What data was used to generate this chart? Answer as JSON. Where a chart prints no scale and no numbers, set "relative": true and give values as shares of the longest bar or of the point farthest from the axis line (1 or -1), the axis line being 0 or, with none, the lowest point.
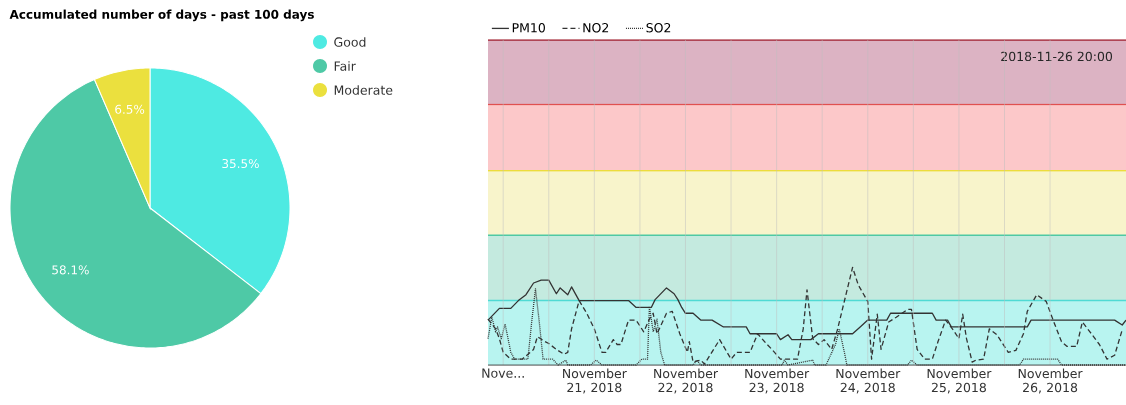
{
  "chart_data": [
    {
      "type": "pie",
      "title": "Accumulated number of days - past 100 days",
      "categories": [
        "Good",
        "Fair",
        "Moderate"
      ],
      "values": [
        35.5,
        58.1,
        6.5
      ],
      "colors": [
        "#4eeae2",
        "#4ec9a6",
        "#ebe03e"
      ],
      "value_labels": [
        "35.5%",
        "58.1%",
        "6.5%"
      ],
      "legend": "top right"
    },
    {
      "type": "line",
      "relative": true,
      "legend": "top left",
      "grid": "x",
      "annotations": [
        "2018-11-26 20:00"
      ],
      "xlim": [
        "2018-11-19T20:00",
        "2018-11-26T20:00"
      ],
      "xticks": [
        {
          "value": "2018-11-20",
          "label": "Nove..."
        },
        {
          "value": "2018-11-21",
          "label": "November 21, 2018"
        },
        {
          "value": "2018-11-22",
          "label": "November 22, 2018"
        },
        {
          "value": "2018-11-23",
          "label": "November 23, 2018"
        },
        {
          "value": "2018-11-24",
          "label": "November 24, 2018"
        },
        {
          "value": "2018-11-25",
          "label": "November 25, 2018"
        },
        {
          "value": "2018-11-26",
          "label": "November 26, 2018"
        }
      ],
      "bands": [
        {
          "axis": "y",
          "from": 0,
          "to": 0.66,
          "color": "#b8f4f0"
        },
        {
          "axis": "y",
          "from": 0.66,
          "to": 1.33,
          "color": "#c4eadf"
        },
        {
          "axis": "y",
          "from": 1.33,
          "to": 1.99,
          "color": "#f8f4cb"
        },
        {
          "axis": "y",
          "from": 1.99,
          "to": 2.67,
          "color": "#fcc8c9"
        },
        {
          "axis": "y",
          "from": 2.67,
          "to": 3.33,
          "color": "#dcb3c3"
        }
      ],
      "ref_lines": [
        {
          "axis": "y",
          "value": 0.66,
          "color": "#4fdad4"
        },
        {
          "axis": "y",
          "value": 1.33,
          "color": "#4fc9a4"
        },
        {
          "axis": "y",
          "value": 1.99,
          "color": "#ecdc3c"
        },
        {
          "axis": "y",
          "value": 2.67,
          "color": "#e05050"
        },
        {
          "axis": "y",
          "value": 3.33,
          "color": "#a02030"
        }
      ],
      "series": [
        {
          "name": "PM10",
          "color": "#333333",
          "line_style": "solid",
          "x": [
            "2018-11-19T20:00",
            "2018-11-19T23:00",
            "2018-11-20T02:00",
            "2018-11-20T04:00",
            "2018-11-20T06:00",
            "2018-11-20T08:00",
            "2018-11-20T10:00",
            "2018-11-20T12:00",
            "2018-11-20T14:00",
            "2018-11-20T15:00",
            "2018-11-20T17:00",
            "2018-11-20T18:00",
            "2018-11-20T20:00",
            "2018-11-21T09:00",
            "2018-11-21T11:00",
            "2018-11-21T15:00",
            "2018-11-21T16:00",
            "2018-11-21T19:00",
            "2018-11-21T21:00",
            "2018-11-21T22:00",
            "2018-11-21T23:00",
            "2018-11-22T00:00",
            "2018-11-22T02:00",
            "2018-11-22T04:00",
            "2018-11-22T07:00",
            "2018-11-22T10:00",
            "2018-11-22T16:00",
            "2018-11-22T17:00",
            "2018-11-23T00:00",
            "2018-11-23T01:00",
            "2018-11-23T03:00",
            "2018-11-23T04:00",
            "2018-11-23T09:00",
            "2018-11-23T11:00",
            "2018-11-23T20:00",
            "2018-11-23T22:00",
            "2018-11-24T00:00",
            "2018-11-24T05:00",
            "2018-11-24T06:00",
            "2018-11-24T17:00",
            "2018-11-24T18:00",
            "2018-11-24T21:00",
            "2018-11-24T22:00",
            "2018-11-25T18:00",
            "2018-11-25T19:00",
            "2018-11-26T17:00",
            "2018-11-26T19:00",
            "2018-11-26T20:00"
          ],
          "values": [
            0.46,
            0.58,
            0.58,
            0.66,
            0.72,
            0.84,
            0.87,
            0.87,
            0.73,
            0.79,
            0.72,
            0.8,
            0.66,
            0.66,
            0.59,
            0.59,
            0.67,
            0.79,
            0.73,
            0.67,
            0.59,
            0.53,
            0.53,
            0.46,
            0.46,
            0.39,
            0.39,
            0.32,
            0.32,
            0.26,
            0.31,
            0.26,
            0.26,
            0.32,
            0.32,
            0.39,
            0.46,
            0.46,
            0.53,
            0.53,
            0.46,
            0.46,
            0.39,
            0.39,
            0.46,
            0.46,
            0.41,
            0.46
          ]
        },
        {
          "name": "NO2",
          "color": "#333333",
          "line_style": "dashed",
          "x": [
            "2018-11-19T20:00",
            "2018-11-19T22:00",
            "2018-11-19T23:00",
            "2018-11-20T00:00",
            "2018-11-20T02:00",
            "2018-11-20T05:00",
            "2018-11-20T08:00",
            "2018-11-20T09:00",
            "2018-11-20T11:00",
            "2018-11-20T12:00",
            "2018-11-20T14:00",
            "2018-11-20T16:00",
            "2018-11-20T17:00",
            "2018-11-20T18:00",
            "2018-11-20T20:00",
            "2018-11-20T22:00",
            "2018-11-21T00:00",
            "2018-11-21T02:00",
            "2018-11-21T03:00",
            "2018-11-21T05:00",
            "2018-11-21T06:00",
            "2018-11-21T07:00",
            "2018-11-21T09:00",
            "2018-11-21T11:00",
            "2018-11-21T13:00",
            "2018-11-21T14:30",
            "2018-11-21T15:30",
            "2018-11-21T16:30",
            "2018-11-21T19:00",
            "2018-11-21T20:30",
            "2018-11-21T22:30",
            "2018-11-22T00:30",
            "2018-11-22T01:00",
            "2018-11-22T02:00",
            "2018-11-22T04:00",
            "2018-11-22T05:00",
            "2018-11-22T09:00",
            "2018-11-22T12:00",
            "2018-11-22T13:30",
            "2018-11-22T17:00",
            "2018-11-22T19:00",
            "2018-11-22T21:30",
            "2018-11-22T23:00",
            "2018-11-23T01:00",
            "2018-11-23T05:30",
            "2018-11-23T07:00",
            "2018-11-23T08:00",
            "2018-11-23T09:30",
            "2018-11-23T11:00",
            "2018-11-23T12:30",
            "2018-11-23T14:30",
            "2018-11-23T16:00",
            "2018-11-23T20:00",
            "2018-11-23T21:30",
            "2018-11-24T00:00",
            "2018-11-24T01:00",
            "2018-11-24T02:30",
            "2018-11-24T03:30",
            "2018-11-24T05:30",
            "2018-11-24T07:30",
            "2018-11-24T10:30",
            "2018-11-24T11:30",
            "2018-11-24T13:00",
            "2018-11-24T15:00",
            "2018-11-24T17:00",
            "2018-11-24T18:30",
            "2018-11-24T20:30",
            "2018-11-24T22:30",
            "2018-11-25T00:00",
            "2018-11-25T01:00",
            "2018-11-25T02:00",
            "2018-11-25T03:30",
            "2018-11-25T04:30",
            "2018-11-25T06:30",
            "2018-11-25T08:00",
            "2018-11-25T10:00",
            "2018-11-25T13:00",
            "2018-11-25T15:00",
            "2018-11-25T17:00",
            "2018-11-25T18:00",
            "2018-11-25T20:30",
            "2018-11-25T23:00",
            "2018-11-26T01:00",
            "2018-11-26T03:00",
            "2018-11-26T04:30",
            "2018-11-26T07:00",
            "2018-11-26T08:30",
            "2018-11-26T10:30",
            "2018-11-26T13:00",
            "2018-11-26T15:00",
            "2018-11-26T17:00",
            "2018-11-26T19:00"
          ],
          "values": [
            0.47,
            0.37,
            0.27,
            0.13,
            0.06,
            0.06,
            0.16,
            0.29,
            0.24,
            0.22,
            0.16,
            0.11,
            0.13,
            0.37,
            0.66,
            0.53,
            0.37,
            0.13,
            0.13,
            0.26,
            0.21,
            0.21,
            0.46,
            0.46,
            0.34,
            0.47,
            0.53,
            0.32,
            0.53,
            0.55,
            0.32,
            0.13,
            0.24,
            0.03,
            0.05,
            0.01,
            0.26,
            0.06,
            0.13,
            0.13,
            0.32,
            0.21,
            0.15,
            0.06,
            0.06,
            0.37,
            0.77,
            0.27,
            0.21,
            0.26,
            0.16,
            0.36,
            1.0,
            0.82,
            0.65,
            0.06,
            0.52,
            0.16,
            0.44,
            0.49,
            0.57,
            0.57,
            0.16,
            0.06,
            0.06,
            0.24,
            0.46,
            0.36,
            0.27,
            0.52,
            0.27,
            0.03,
            0.05,
            0.06,
            0.37,
            0.31,
            0.13,
            0.15,
            0.32,
            0.55,
            0.72,
            0.65,
            0.44,
            0.24,
            0.19,
            0.19,
            0.44,
            0.34,
            0.21,
            0.06,
            0.1,
            0.36
          ]
        },
        {
          "name": "SO2",
          "color": "#333333",
          "line_style": "dotted",
          "x": [
            "2018-11-19T20:00",
            "2018-11-19T21:00",
            "2018-11-19T22:00",
            "2018-11-19T22:30",
            "2018-11-19T23:30",
            "2018-11-20T00:30",
            "2018-11-20T02:00",
            "2018-11-20T03:00",
            "2018-11-20T06:30",
            "2018-11-20T07:30",
            "2018-11-20T08:30",
            "2018-11-20T09:30",
            "2018-11-20T10:30",
            "2018-11-20T13:00",
            "2018-11-20T14:30",
            "2018-11-20T16:30",
            "2018-11-20T17:00",
            "2018-11-20T23:00",
            "2018-11-21T00:30",
            "2018-11-21T02:00",
            "2018-11-21T11:00",
            "2018-11-21T12:30",
            "2018-11-21T14:00",
            "2018-11-21T14:30",
            "2018-11-21T15:30",
            "2018-11-21T16:30",
            "2018-11-21T17:30",
            "2018-11-21T18:30",
            "2018-11-22T02:00",
            "2018-11-22T03:00",
            "2018-11-22T04:00",
            "2018-11-23T01:30",
            "2018-11-23T02:00",
            "2018-11-23T03:00",
            "2018-11-23T09:30",
            "2018-11-23T10:00",
            "2018-11-23T13:00",
            "2018-11-23T15:30",
            "2018-11-23T16:30",
            "2018-11-23T18:00",
            "2018-11-23T18:30",
            "2018-11-24T10:30",
            "2018-11-24T11:30",
            "2018-11-24T13:00",
            "2018-11-25T16:00",
            "2018-11-25T17:00",
            "2018-11-26T02:00",
            "2018-11-26T03:00",
            "2018-11-26T20:00"
          ],
          "values": [
            0.27,
            0.49,
            0.34,
            0.39,
            0.27,
            0.42,
            0.13,
            0.06,
            0.06,
            0.44,
            0.78,
            0.44,
            0.06,
            0.06,
            0,
            0.05,
            0,
            0,
            0.05,
            0,
            0,
            0.06,
            0.06,
            0.6,
            0.34,
            0.47,
            0.13,
            0,
            0,
            0.05,
            0,
            0,
            0.05,
            0,
            0.05,
            0,
            0,
            0.21,
            0.37,
            0.1,
            0,
            0,
            0.05,
            0,
            0,
            0.06,
            0.06,
            0,
            0
          ]
        }
      ]
    }
  ]
}
